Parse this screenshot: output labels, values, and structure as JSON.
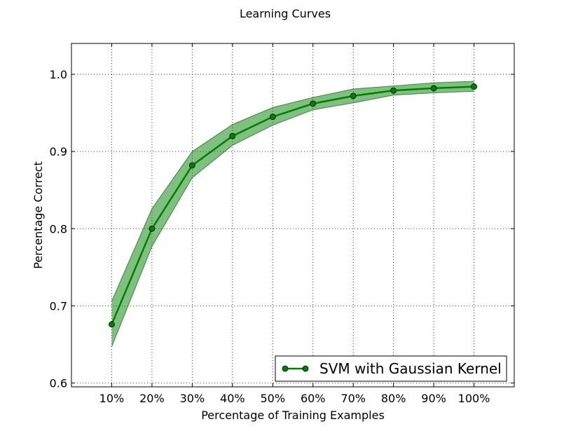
{
  "chart_data": {
    "type": "line",
    "title": "Learning Curves",
    "xlabel": "Percentage of Training Examples",
    "ylabel": "Percentage Correct",
    "categories": [
      "10%",
      "20%",
      "30%",
      "40%",
      "50%",
      "60%",
      "70%",
      "80%",
      "90%",
      "100%"
    ],
    "x": [
      10,
      20,
      30,
      40,
      50,
      60,
      70,
      80,
      90,
      100
    ],
    "xlim": [
      0,
      110
    ],
    "ylim": [
      0.595,
      1.04
    ],
    "yticks": [
      0.6,
      0.7,
      0.8,
      0.9,
      1.0
    ],
    "ytick_labels": [
      "0.6",
      "0.7",
      "0.8",
      "0.9",
      "1.0"
    ],
    "grid": true,
    "legend_position": "bottom-right",
    "series": [
      {
        "name": "SVM with Gaussian Kernel",
        "color": "#008000",
        "marker": "circle",
        "values": [
          0.676,
          0.8,
          0.882,
          0.92,
          0.945,
          0.962,
          0.972,
          0.979,
          0.982,
          0.984
        ],
        "upper": [
          0.706,
          0.826,
          0.9,
          0.935,
          0.957,
          0.97,
          0.981,
          0.985,
          0.989,
          0.991
        ],
        "lower": [
          0.647,
          0.777,
          0.866,
          0.908,
          0.934,
          0.954,
          0.963,
          0.973,
          0.976,
          0.978
        ]
      }
    ]
  }
}
